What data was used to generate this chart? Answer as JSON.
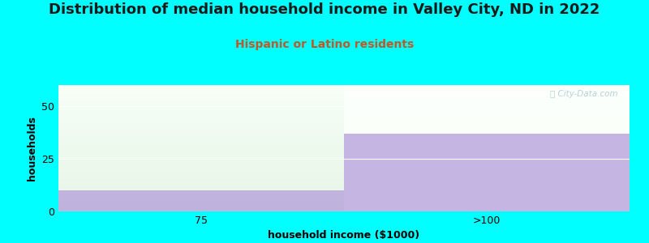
{
  "title": "Distribution of median household income in Valley City, ND in 2022",
  "subtitle": "Hispanic or Latino residents",
  "categories": [
    "75",
    ">100"
  ],
  "values": [
    10,
    37
  ],
  "bar_color": "#b39ddb",
  "bar_alpha": 0.75,
  "background_color": "#00ffff",
  "xlabel": "household income ($1000)",
  "ylabel": "households",
  "ylim": [
    0,
    60
  ],
  "yticks": [
    0,
    25,
    50
  ],
  "watermark": "ⓘ City-Data.com",
  "title_fontsize": 13,
  "subtitle_fontsize": 10,
  "subtitle_color": "#c05828",
  "axis_label_fontsize": 9,
  "tick_fontsize": 9
}
